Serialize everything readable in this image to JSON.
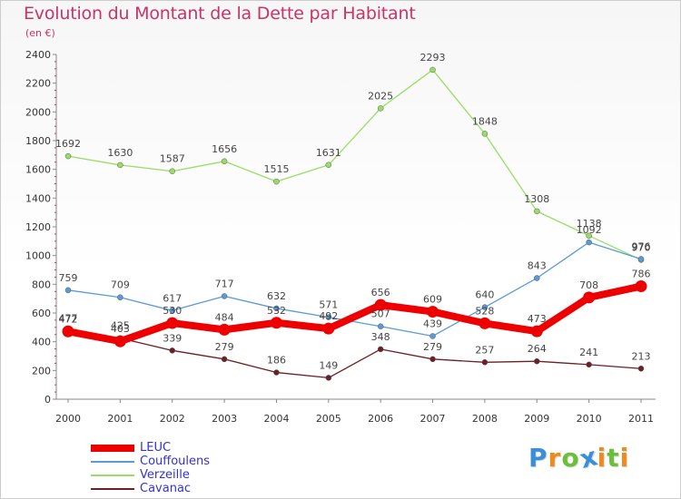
{
  "chart_data": {
    "type": "line",
    "title": "Evolution du Montant de la Dette par Habitant",
    "subtitle": "(en €)",
    "categories": [
      "2000",
      "2001",
      "2002",
      "2003",
      "2004",
      "2005",
      "2006",
      "2007",
      "2008",
      "2009",
      "2010",
      "2011"
    ],
    "ylim": [
      0,
      2400
    ],
    "yticks": [
      0,
      200,
      400,
      600,
      800,
      1000,
      1200,
      1400,
      1600,
      1800,
      2000,
      2200,
      2400
    ],
    "grid": false,
    "legend_position": "bottom-left",
    "series": [
      {
        "name": "LEUC",
        "color": "#ee0000",
        "values": [
          472,
          403,
          530,
          484,
          532,
          492,
          656,
          609,
          528,
          473,
          708,
          786
        ]
      },
      {
        "name": "Couffoulens",
        "color": "#5a9ad6",
        "values": [
          759,
          709,
          617,
          717,
          632,
          571,
          507,
          439,
          640,
          843,
          1092,
          976
        ]
      },
      {
        "name": "Verzeille",
        "color": "#99dd66",
        "values": [
          1692,
          1630,
          1587,
          1656,
          1515,
          1631,
          2025,
          2293,
          1848,
          1308,
          1138,
          970
        ]
      },
      {
        "name": "Cavanac",
        "color": "#6b1f26",
        "values": [
          477,
          425,
          339,
          279,
          186,
          149,
          348,
          279,
          257,
          264,
          241,
          213
        ]
      }
    ]
  },
  "logo": {
    "letters": [
      "P",
      "r",
      "o",
      "x",
      "i",
      "t",
      "i"
    ],
    "colors": [
      "#3b8fd9",
      "#f08a1c",
      "#6cbf3a",
      "#3b8fd9",
      "#f08a1c",
      "#6cbf3a",
      "#f08a1c"
    ]
  }
}
